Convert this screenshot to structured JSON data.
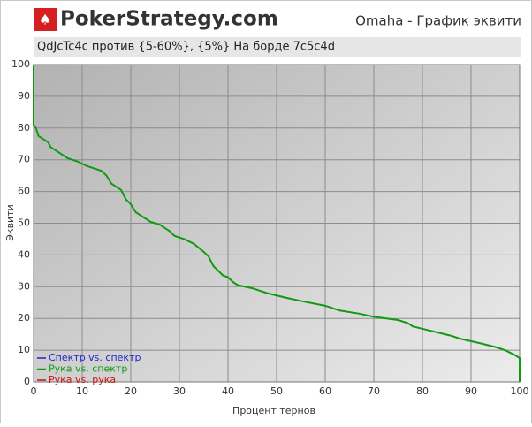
{
  "chart_data": {
    "type": "line",
    "logo": "PokerStrategy.com",
    "title": "Omaha - График эквити",
    "subtitle": "QdJcTc4c против {5-60%}, {5%} На борде 7c5c4d",
    "x_label": "Процент тернов",
    "y_label": "Эквити",
    "xlim": [
      0,
      100
    ],
    "ylim": [
      0,
      100
    ],
    "xticks": [
      0,
      10,
      20,
      30,
      40,
      50,
      60,
      70,
      80,
      90,
      100
    ],
    "yticks": [
      0,
      10,
      20,
      30,
      40,
      50,
      60,
      70,
      80,
      90,
      100
    ],
    "grid": true,
    "legend": "lower left",
    "x": [
      0,
      0,
      0.5,
      1,
      3,
      3.5,
      5,
      7,
      9,
      11,
      13,
      14,
      15,
      16,
      17,
      18,
      19,
      20,
      21,
      22,
      24,
      26,
      28,
      29,
      31,
      33,
      35,
      36,
      37,
      38,
      39,
      40,
      41,
      42,
      45,
      48,
      52,
      55,
      60,
      63,
      67,
      70,
      75,
      77,
      78,
      82,
      86,
      88,
      91,
      95,
      97,
      99,
      100,
      100
    ],
    "series": [
      {
        "name": "Спектр vs. спектр",
        "color": "#2222cc",
        "values": [
          null,
          null,
          null,
          null,
          null,
          null,
          null,
          null,
          null,
          null,
          null,
          null,
          null,
          null,
          null,
          null,
          null,
          null,
          null,
          null,
          null,
          null,
          null,
          null,
          null,
          null,
          null,
          null,
          null,
          null,
          null,
          null,
          null,
          null,
          null,
          null,
          null,
          null,
          null,
          null,
          null,
          null,
          null,
          null,
          null,
          null,
          null,
          null,
          null,
          null,
          null,
          null,
          null,
          null
        ]
      },
      {
        "name": "Рука vs. спектр",
        "color": "#119911",
        "values": [
          100,
          81,
          80,
          77.5,
          75.5,
          74,
          72.5,
          70.5,
          69.5,
          68,
          67,
          66.5,
          65,
          62.5,
          61.5,
          60.5,
          57.5,
          56,
          53.5,
          52.5,
          50.5,
          49.5,
          47.5,
          46,
          45,
          43.5,
          41,
          39.5,
          36.5,
          35,
          33.5,
          33,
          31.5,
          30.5,
          29.5,
          28,
          26.5,
          25.5,
          24,
          22.5,
          21.5,
          20.5,
          19.5,
          18.5,
          17.5,
          16,
          14.5,
          13.5,
          12.5,
          11,
          10,
          8.5,
          7.5,
          0
        ]
      },
      {
        "name": "Рука vs. рука",
        "color": "#cc1111",
        "values": [
          null,
          null,
          null,
          null,
          null,
          null,
          null,
          null,
          null,
          null,
          null,
          null,
          null,
          null,
          null,
          null,
          null,
          null,
          null,
          null,
          null,
          null,
          null,
          null,
          null,
          null,
          null,
          null,
          null,
          null,
          null,
          null,
          null,
          null,
          null,
          null,
          null,
          null,
          null,
          null,
          null,
          null,
          null,
          null,
          null,
          null,
          null,
          null,
          null,
          null,
          null,
          null,
          null,
          null
        ]
      }
    ]
  }
}
